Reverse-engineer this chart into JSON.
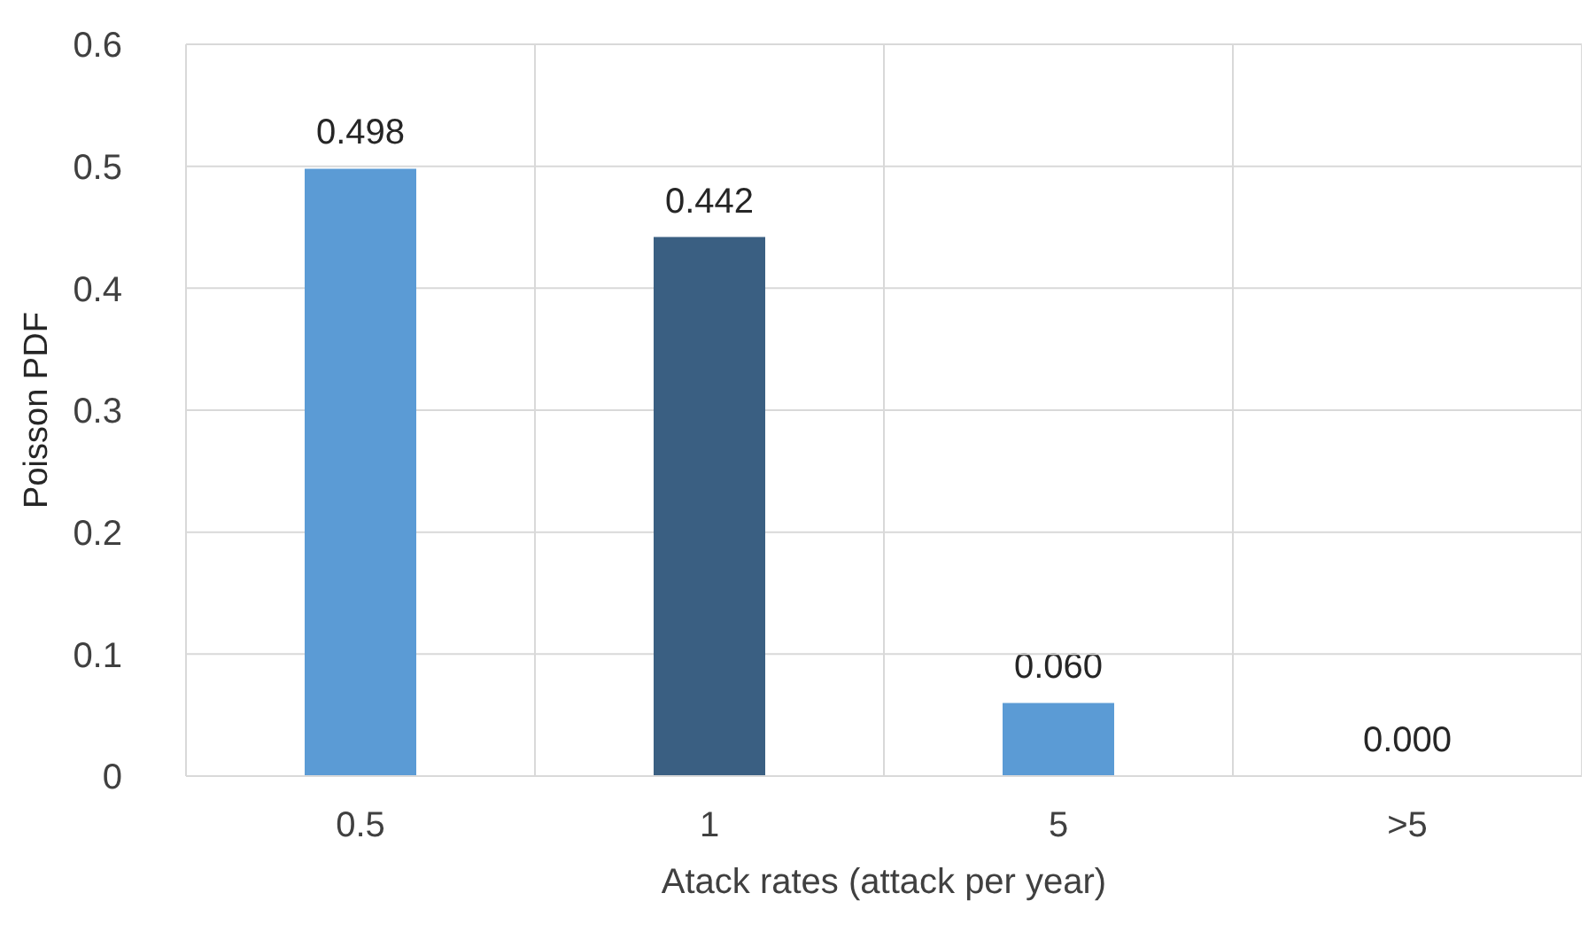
{
  "chart_data": {
    "type": "bar",
    "xlabel": "Atack rates (attack per year)",
    "ylabel": "Poisson PDF",
    "categories": [
      "0.5",
      "1",
      "5",
      ">5"
    ],
    "values": [
      0.498,
      0.442,
      0.06,
      0
    ],
    "colors": [
      "#5b9bd5",
      "#3a5f82",
      "#5b9bd5",
      "#5b9bd5"
    ],
    "value_labels": [
      "0.498",
      "0.442",
      "0.060",
      "0.000"
    ],
    "ylim": [
      0,
      0.6
    ],
    "yticks": [
      0,
      0.1,
      0.2,
      0.3,
      0.4,
      0.5,
      0.6
    ],
    "grid": true
  }
}
